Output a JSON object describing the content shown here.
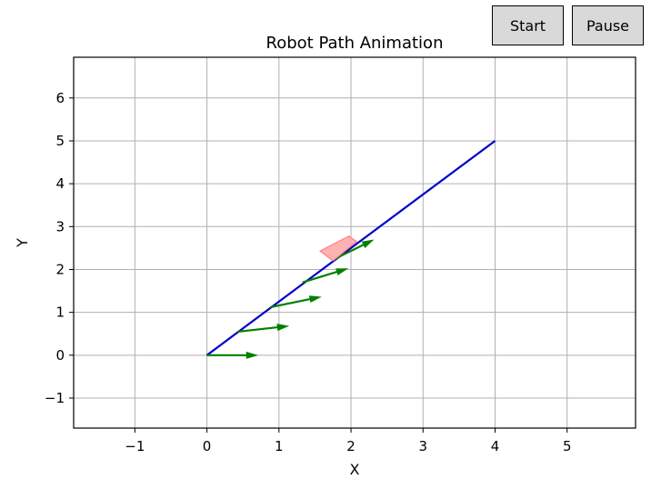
{
  "controls": {
    "start_label": "Start",
    "pause_label": "Pause"
  },
  "chart_data": {
    "type": "line",
    "title": "Robot Path Animation",
    "xlabel": "X",
    "ylabel": "Y",
    "xlim": [
      -1.85,
      5.95
    ],
    "ylim": [
      -1.7,
      6.95
    ],
    "xticks": [
      -1,
      0,
      1,
      2,
      3,
      4,
      5
    ],
    "yticks": [
      -1,
      0,
      1,
      2,
      3,
      4,
      5,
      6
    ],
    "grid": true,
    "colors": {
      "path": "#0000cc",
      "arrows": "#008000",
      "robot_fill": "#ffaaaa",
      "robot_edge": "#ff7777",
      "grid": "#b0b0b0"
    },
    "path": {
      "x": [
        0,
        4
      ],
      "y": [
        0,
        5
      ]
    },
    "heading_arrows": [
      {
        "x": 0.0,
        "y": 0.0,
        "dx": 0.7,
        "dy": 0.0
      },
      {
        "x": 0.43,
        "y": 0.55,
        "dx": 0.7,
        "dy": 0.13
      },
      {
        "x": 0.88,
        "y": 1.12,
        "dx": 0.7,
        "dy": 0.24
      },
      {
        "x": 1.33,
        "y": 1.7,
        "dx": 0.62,
        "dy": 0.32
      },
      {
        "x": 1.78,
        "y": 2.25,
        "dx": 0.53,
        "dy": 0.44
      }
    ],
    "robot": {
      "corners": [
        [
          1.57,
          2.43
        ],
        [
          1.97,
          2.78
        ],
        [
          2.08,
          2.65
        ],
        [
          1.75,
          2.2
        ]
      ]
    }
  }
}
